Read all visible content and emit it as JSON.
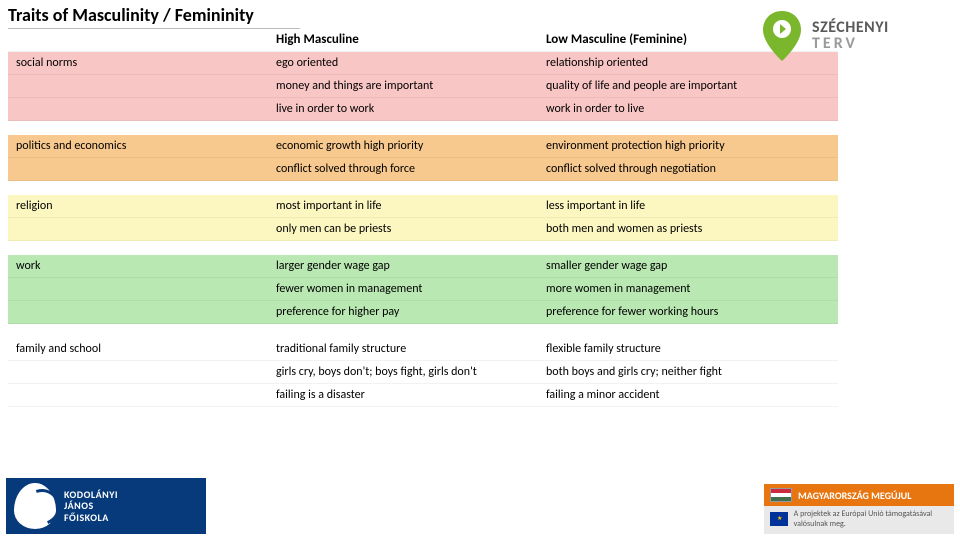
{
  "title": "Traits of Masculinity / Femininity",
  "headers": {
    "cat": "",
    "high": "High Masculine",
    "low": "Low Masculine (Feminine)"
  },
  "sections": [
    {
      "bg": "bg-red",
      "category": "social norms",
      "rows": [
        {
          "high": "ego oriented",
          "low": "relationship oriented"
        },
        {
          "high": "money and things are important",
          "low": "quality of life and people are important"
        },
        {
          "high": "live in order to work",
          "low": "work in order to live"
        }
      ]
    },
    {
      "bg": "bg-orange",
      "category": "politics and economics",
      "rows": [
        {
          "high": "economic growth high priority",
          "low": "environment protection high priority"
        },
        {
          "high": "conflict solved through force",
          "low": "conflict solved through negotiation"
        }
      ]
    },
    {
      "bg": "bg-yellow",
      "category": "religion",
      "rows": [
        {
          "high": "most important in life",
          "low": "less important in life"
        },
        {
          "high": "only men can be priests",
          "low": "both men and women as priests"
        }
      ]
    },
    {
      "bg": "bg-green",
      "category": "work",
      "rows": [
        {
          "high": "larger gender wage gap",
          "low": "smaller gender wage gap"
        },
        {
          "high": "fewer women in management",
          "low": "more women in management"
        },
        {
          "high": "preference for higher pay",
          "low": "preference for fewer working hours"
        }
      ]
    },
    {
      "bg": "bg-white",
      "category": "family and school",
      "rows": [
        {
          "high": "traditional family structure",
          "low": "flexible family structure"
        },
        {
          "high": "girls cry, boys don't; boys fight, girls don't",
          "low": "both boys and girls cry; neither fight"
        },
        {
          "high": "failing is a disaster",
          "low": "failing a minor accident"
        }
      ]
    }
  ],
  "szechenyi": {
    "line1": "SZÉCHENYI",
    "line2": "TERV"
  },
  "kodolanyi": {
    "l1": "KODOLÁNYI",
    "l2": "JÁNOS",
    "l3": "FŐISKOLA"
  },
  "eu": {
    "bar": "MAGYARORSZÁG MEGÚJUL",
    "sub": "A projektek az Európai Unió támogatásával valósulnak meg."
  }
}
